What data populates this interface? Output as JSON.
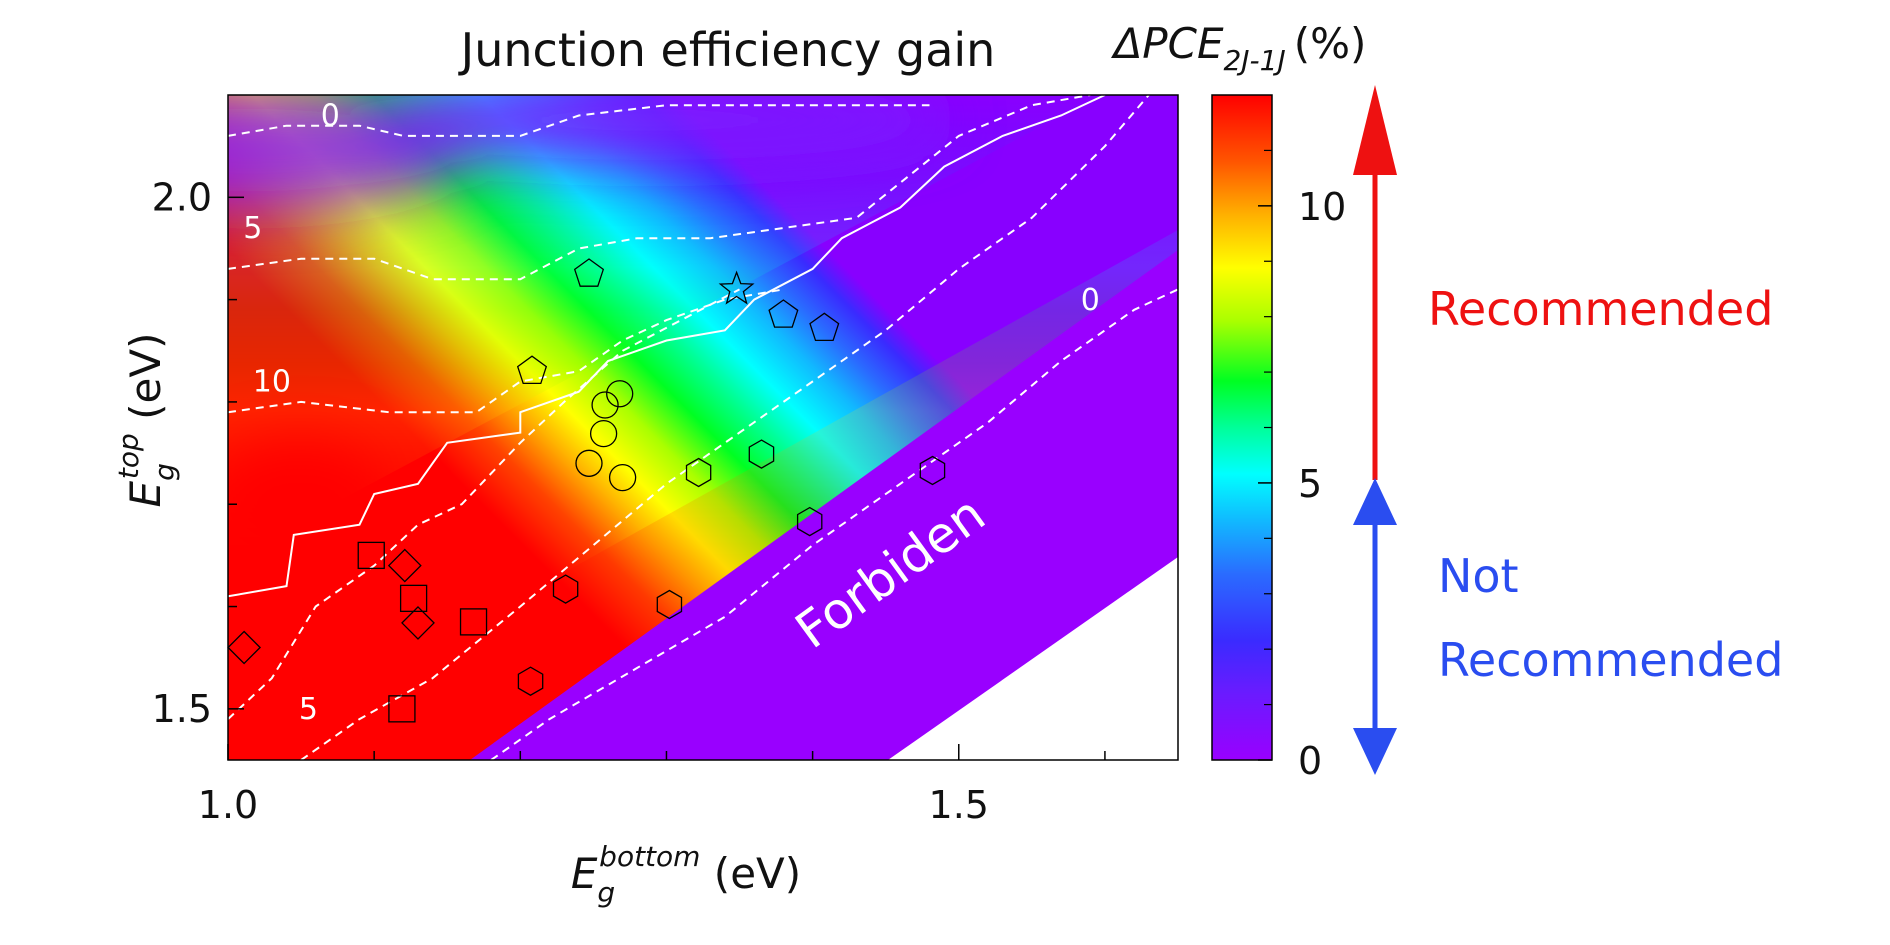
{
  "chart_data": {
    "type": "heatmap",
    "title": "Junction efficiency gain",
    "xlabel": {
      "main": "E",
      "sub": "g",
      "sup": "bottom",
      "unit": " (eV)"
    },
    "ylabel": {
      "main": "E",
      "sub": "g",
      "sup": "top",
      "unit": " (eV)"
    },
    "xlim": [
      1.0,
      1.65
    ],
    "ylim": [
      1.45,
      2.1
    ],
    "xticks": [
      {
        "v": 1.0,
        "label": "1.0"
      },
      {
        "v": 1.5,
        "label": "1.5"
      }
    ],
    "xminor": [
      1.1,
      1.2,
      1.3,
      1.4,
      1.6
    ],
    "yticks": [
      {
        "v": 1.5,
        "label": "1.5"
      },
      {
        "v": 2.0,
        "label": "2.0"
      }
    ],
    "yminor": [
      1.6,
      1.7,
      1.8,
      1.9
    ],
    "colorbar": {
      "label": {
        "main": "ΔPCE",
        "sub": "2J-1J",
        "unit": "(%)"
      },
      "min": 0,
      "max": 12,
      "ticks": [
        {
          "v": 0,
          "label": "0"
        },
        {
          "v": 5,
          "label": "5"
        },
        {
          "v": 10,
          "label": "10"
        }
      ],
      "minor": [
        1,
        2,
        3,
        4,
        6,
        7,
        8,
        9,
        11
      ]
    },
    "contour_labels": [
      {
        "text": "0",
        "x": 1.07,
        "y": 2.07
      },
      {
        "text": "5",
        "x": 1.017,
        "y": 1.96
      },
      {
        "text": "10",
        "x": 1.03,
        "y": 1.81
      },
      {
        "text": "0",
        "x": 1.59,
        "y": 1.89
      },
      {
        "text": "5",
        "x": 1.055,
        "y": 1.49
      }
    ],
    "region_label": {
      "text": "Forbiden",
      "x": 1.46,
      "y": 1.62,
      "rotation": -36
    },
    "markers": [
      {
        "shape": "square",
        "points": [
          [
            1.098,
            1.65
          ],
          [
            1.127,
            1.608
          ],
          [
            1.168,
            1.585
          ],
          [
            1.119,
            1.5
          ]
        ]
      },
      {
        "shape": "diamond",
        "points": [
          [
            1.011,
            1.56
          ],
          [
            1.121,
            1.64
          ],
          [
            1.13,
            1.584
          ]
        ]
      },
      {
        "shape": "pentagon",
        "points": [
          [
            1.208,
            1.83
          ],
          [
            1.247,
            1.925
          ],
          [
            1.38,
            1.885
          ],
          [
            1.408,
            1.872
          ]
        ]
      },
      {
        "shape": "circle",
        "points": [
          [
            1.258,
            1.797
          ],
          [
            1.268,
            1.808
          ],
          [
            1.257,
            1.769
          ],
          [
            1.247,
            1.74
          ],
          [
            1.27,
            1.726
          ]
        ]
      },
      {
        "shape": "hexagon",
        "points": [
          [
            1.231,
            1.617
          ],
          [
            1.302,
            1.602
          ],
          [
            1.322,
            1.731
          ],
          [
            1.365,
            1.749
          ],
          [
            1.398,
            1.683
          ],
          [
            1.482,
            1.733
          ],
          [
            1.207,
            1.527
          ]
        ]
      },
      {
        "shape": "star",
        "points": [
          [
            1.348,
            1.91
          ]
        ]
      }
    ],
    "grid": false
  },
  "annotations": {
    "recommended": "Recommended",
    "not_recommended_line1": "Not",
    "not_recommended_line2": "Recommended"
  },
  "colors": {
    "recommended": "#ee1111",
    "not_recommended": "#2a4df0",
    "forbidden": "#9900ff",
    "contour": "#ffffff"
  }
}
